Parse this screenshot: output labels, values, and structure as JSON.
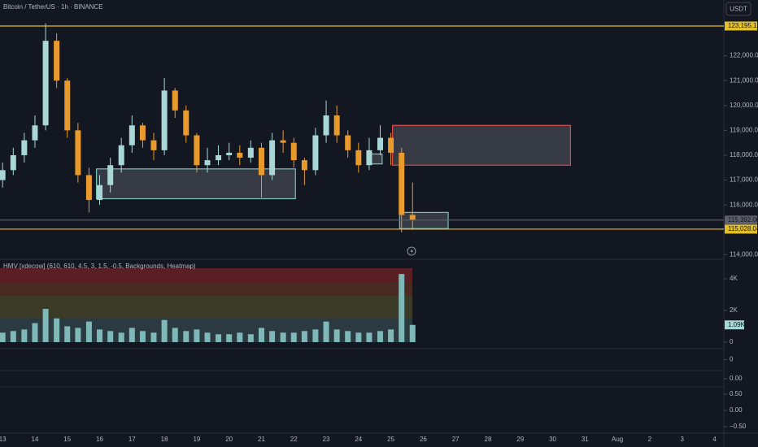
{
  "chart_data": [
    {
      "type": "candlestick",
      "title": "Bitcoin / TetherUS · 1h · BINANCE",
      "currency": "USDT",
      "x": [
        0,
        0.33,
        0.67,
        1,
        1.33,
        1.67,
        2,
        2.33,
        2.67,
        3,
        3.33,
        3.67,
        4,
        4.33,
        4.67,
        5,
        5.33,
        5.67,
        6,
        6.33,
        6.67,
        7,
        7.33,
        7.67,
        8,
        8.33,
        8.67,
        9,
        9.33,
        9.67,
        10,
        10.33,
        10.67,
        11,
        11.33,
        11.67,
        12,
        12.33,
        12.67
      ],
      "open": [
        117000,
        117400,
        118000,
        118600,
        119200,
        122600,
        121000,
        119000,
        117200,
        116200,
        116800,
        117600,
        118400,
        119200,
        118600,
        118200,
        120600,
        119800,
        118800,
        117600,
        117800,
        118000,
        118100,
        117900,
        118300,
        117200,
        118600,
        118500,
        117800,
        117400,
        118800,
        119600,
        118800,
        118200,
        117600,
        118200,
        118700,
        118100,
        115600
      ],
      "high": [
        117700,
        118300,
        118900,
        119600,
        123300,
        122900,
        121100,
        119300,
        117500,
        117200,
        117900,
        118700,
        119600,
        119300,
        118900,
        121100,
        120700,
        120000,
        118900,
        118300,
        118400,
        118500,
        118400,
        118600,
        118500,
        118900,
        119000,
        118700,
        117900,
        119100,
        120200,
        120000,
        119000,
        118500,
        118700,
        119200,
        118900,
        118300,
        116900
      ],
      "low": [
        116700,
        117200,
        117700,
        118300,
        119000,
        120700,
        118700,
        116900,
        115700,
        116000,
        116500,
        117300,
        118100,
        118300,
        117800,
        118000,
        119500,
        118500,
        117300,
        117300,
        117600,
        117800,
        117600,
        117700,
        116300,
        117000,
        118100,
        117500,
        116800,
        117200,
        118500,
        118500,
        117900,
        117300,
        117400,
        118000,
        117600,
        114900,
        115000
      ],
      "close": [
        117400,
        118000,
        118600,
        119200,
        122600,
        121000,
        119000,
        117200,
        116200,
        116800,
        117600,
        118400,
        119200,
        118600,
        118200,
        120600,
        119800,
        118800,
        117600,
        117800,
        118000,
        118100,
        117900,
        118300,
        117200,
        118600,
        118500,
        117800,
        117400,
        118800,
        119600,
        118800,
        118200,
        117600,
        118200,
        118700,
        118100,
        115600,
        115392
      ],
      "up_color": "#a9d6d6",
      "down_color": "#e89a2c",
      "xlim": [
        -0.08,
        22.29
      ],
      "xticks": [
        {
          "value": 0,
          "label": "13"
        },
        {
          "value": 1,
          "label": "14"
        },
        {
          "value": 2,
          "label": "15"
        },
        {
          "value": 3,
          "label": "16"
        },
        {
          "value": 4,
          "label": "17"
        },
        {
          "value": 5,
          "label": "18"
        },
        {
          "value": 6,
          "label": "19"
        },
        {
          "value": 7,
          "label": "20"
        },
        {
          "value": 8,
          "label": "21"
        },
        {
          "value": 9,
          "label": "22"
        },
        {
          "value": 10,
          "label": "23"
        },
        {
          "value": 11,
          "label": "24"
        },
        {
          "value": 12,
          "label": "25"
        },
        {
          "value": 13,
          "label": "26"
        },
        {
          "value": 14,
          "label": "27"
        },
        {
          "value": 15,
          "label": "28"
        },
        {
          "value": 16,
          "label": "29"
        },
        {
          "value": 17,
          "label": "30"
        },
        {
          "value": 18,
          "label": "31"
        },
        {
          "value": 19,
          "label": "Aug"
        },
        {
          "value": 20,
          "label": "2"
        },
        {
          "value": 21,
          "label": "3"
        },
        {
          "value": 22,
          "label": "4"
        }
      ],
      "ylim": [
        113850,
        124240
      ],
      "yticks": [
        {
          "value": 114000,
          "label": "114,000.00"
        },
        {
          "value": 116000,
          "label": "116,000.00"
        },
        {
          "value": 117000,
          "label": "117,000.00"
        },
        {
          "value": 118000,
          "label": "118,000.00"
        },
        {
          "value": 119000,
          "label": "119,000.00"
        },
        {
          "value": 120000,
          "label": "120,000.00"
        },
        {
          "value": 121000,
          "label": "121,000.00"
        },
        {
          "value": 122000,
          "label": "122,000.00"
        }
      ],
      "levels": [
        {
          "value": 123195.18,
          "label": "123,195.18",
          "color": "#e3bf2a"
        },
        {
          "value": 115392,
          "label": "115,392.00",
          "color": "#5d606b"
        },
        {
          "value": 115028.04,
          "label": "115,028.04",
          "color": "#e3bf2a"
        }
      ],
      "zones": [
        {
          "x": [
            2.9,
            9.05
          ],
          "y": [
            116250,
            117450
          ],
          "color": "#7ac4b4"
        },
        {
          "x": [
            12.05,
            17.55
          ],
          "y": [
            117600,
            119200
          ],
          "color": "#e04848"
        },
        {
          "x": [
            11.35,
            11.73
          ],
          "y": [
            117650,
            118050
          ],
          "color": "#7ac4b4"
        },
        {
          "x": [
            12.27,
            13.77
          ],
          "y": [
            115050,
            115700
          ],
          "color": "#7ac4b4"
        }
      ]
    },
    {
      "type": "bar",
      "title": "HMV [xdecow] (610, 610, 4.5, 3, 1.5, -0.5, Backgrounds, Heatmap)",
      "values": [
        600,
        700,
        800,
        1200,
        2100,
        1500,
        1000,
        900,
        1300,
        800,
        700,
        600,
        900,
        700,
        600,
        1400,
        900,
        700,
        800,
        600,
        500,
        500,
        600,
        500,
        900,
        700,
        600,
        600,
        700,
        800,
        1300,
        800,
        700,
        600,
        600,
        700,
        800,
        4300,
        1090
      ],
      "last_label": "1.09K",
      "color": "#7fb8b8",
      "label_color": "#a9d6d6",
      "ylim": [
        -360,
        5180
      ],
      "yticks": [
        0,
        {
          "value": 2000,
          "label": "2K"
        },
        {
          "value": 4000,
          "label": "4K"
        }
      ]
    },
    {
      "type": "pane",
      "ylim": [
        -1,
        1
      ],
      "yticks": [
        0
      ]
    },
    {
      "type": "pane",
      "ylim": [
        -1,
        1
      ],
      "yticks": [
        {
          "value": 0,
          "label": "0.00"
        }
      ]
    },
    {
      "type": "pane",
      "ylim": [
        -0.7,
        0.7
      ],
      "yticks": [
        {
          "value": 0.5,
          "label": "0.50"
        },
        {
          "value": 0,
          "label": "0.00"
        },
        {
          "value": -0.5,
          "label": "−0.50"
        }
      ]
    }
  ]
}
